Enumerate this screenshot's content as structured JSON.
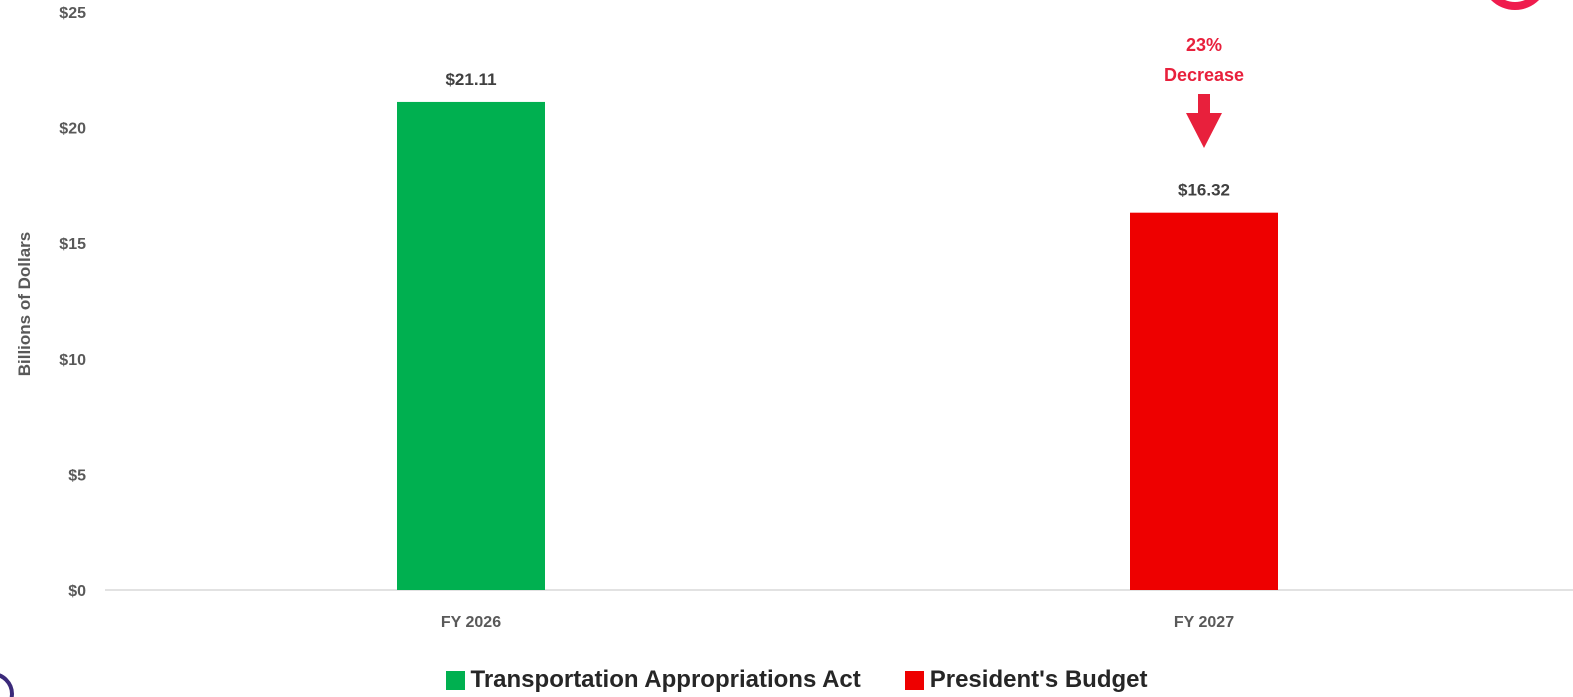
{
  "chart_data": {
    "type": "bar",
    "categories": [
      "FY 2026",
      "FY 2027"
    ],
    "series": [
      {
        "name": "Transportation Appropriations Act",
        "color": "#00b050",
        "values": [
          21.11,
          null
        ]
      },
      {
        "name": "President's Budget",
        "color": "#ee0000",
        "values": [
          null,
          16.32
        ]
      }
    ],
    "data_labels": [
      "$21.11",
      "$16.32"
    ],
    "ylabel": "Billions of Dollars",
    "ylim": [
      0,
      25
    ],
    "yticks": [
      0,
      5,
      10,
      15,
      20,
      25
    ],
    "ytick_labels": [
      "$0",
      "$5",
      "$10",
      "$15",
      "$20",
      "$25"
    ],
    "grid": false,
    "legend_position": "bottom",
    "annotation": {
      "category": "FY 2027",
      "lines": [
        "23%",
        "Decrease"
      ],
      "color": "#e8203c",
      "icon": "down-arrow-icon"
    }
  },
  "legend": {
    "items": [
      {
        "label": "Transportation Appropriations Act",
        "color": "#00b050"
      },
      {
        "label": "President's Budget",
        "color": "#ee0000"
      }
    ]
  }
}
